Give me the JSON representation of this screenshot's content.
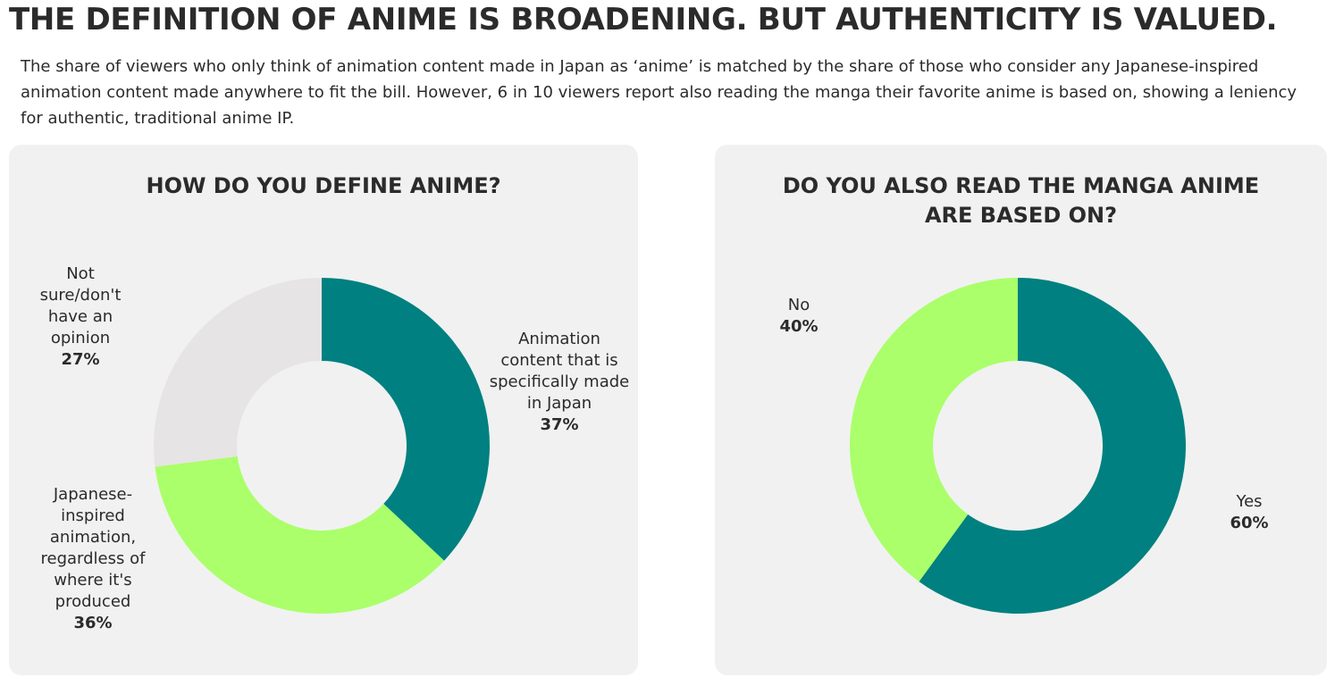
{
  "header": {
    "title": "THE DEFINITION OF ANIME IS BROADENING. BUT AUTHENTICITY IS VALUED.",
    "intro": "The share of viewers who only think of animation content made in Japan as ‘anime’ is matched by the share of those who consider any Japanese-inspired animation content made anywhere to fit the bill. However, 6 in 10 viewers report also reading the manga their favorite anime is based on, showing a leniency for authentic, traditional anime IP."
  },
  "chart_data": [
    {
      "type": "pie",
      "title": "HOW DO YOU DEFINE ANIME?",
      "donut": true,
      "slices": [
        {
          "label": "Animation content that is specifically made in Japan",
          "value": 37,
          "display": "37%",
          "color": "#008080"
        },
        {
          "label": "Japanese-inspired animation, regardless of where it's produced",
          "value": 36,
          "display": "36%",
          "color": "#aaff6a"
        },
        {
          "label": "Not sure/don't have an opinion",
          "value": 27,
          "display": "27%",
          "color": "#e6e4e4"
        }
      ]
    },
    {
      "type": "pie",
      "title": "DO YOU ALSO READ THE MANGA ANIME ARE BASED ON?",
      "donut": true,
      "slices": [
        {
          "label": "Yes",
          "value": 60,
          "display": "60%",
          "color": "#008080"
        },
        {
          "label": "No",
          "value": 40,
          "display": "40%",
          "color": "#aaff6a"
        }
      ]
    }
  ]
}
